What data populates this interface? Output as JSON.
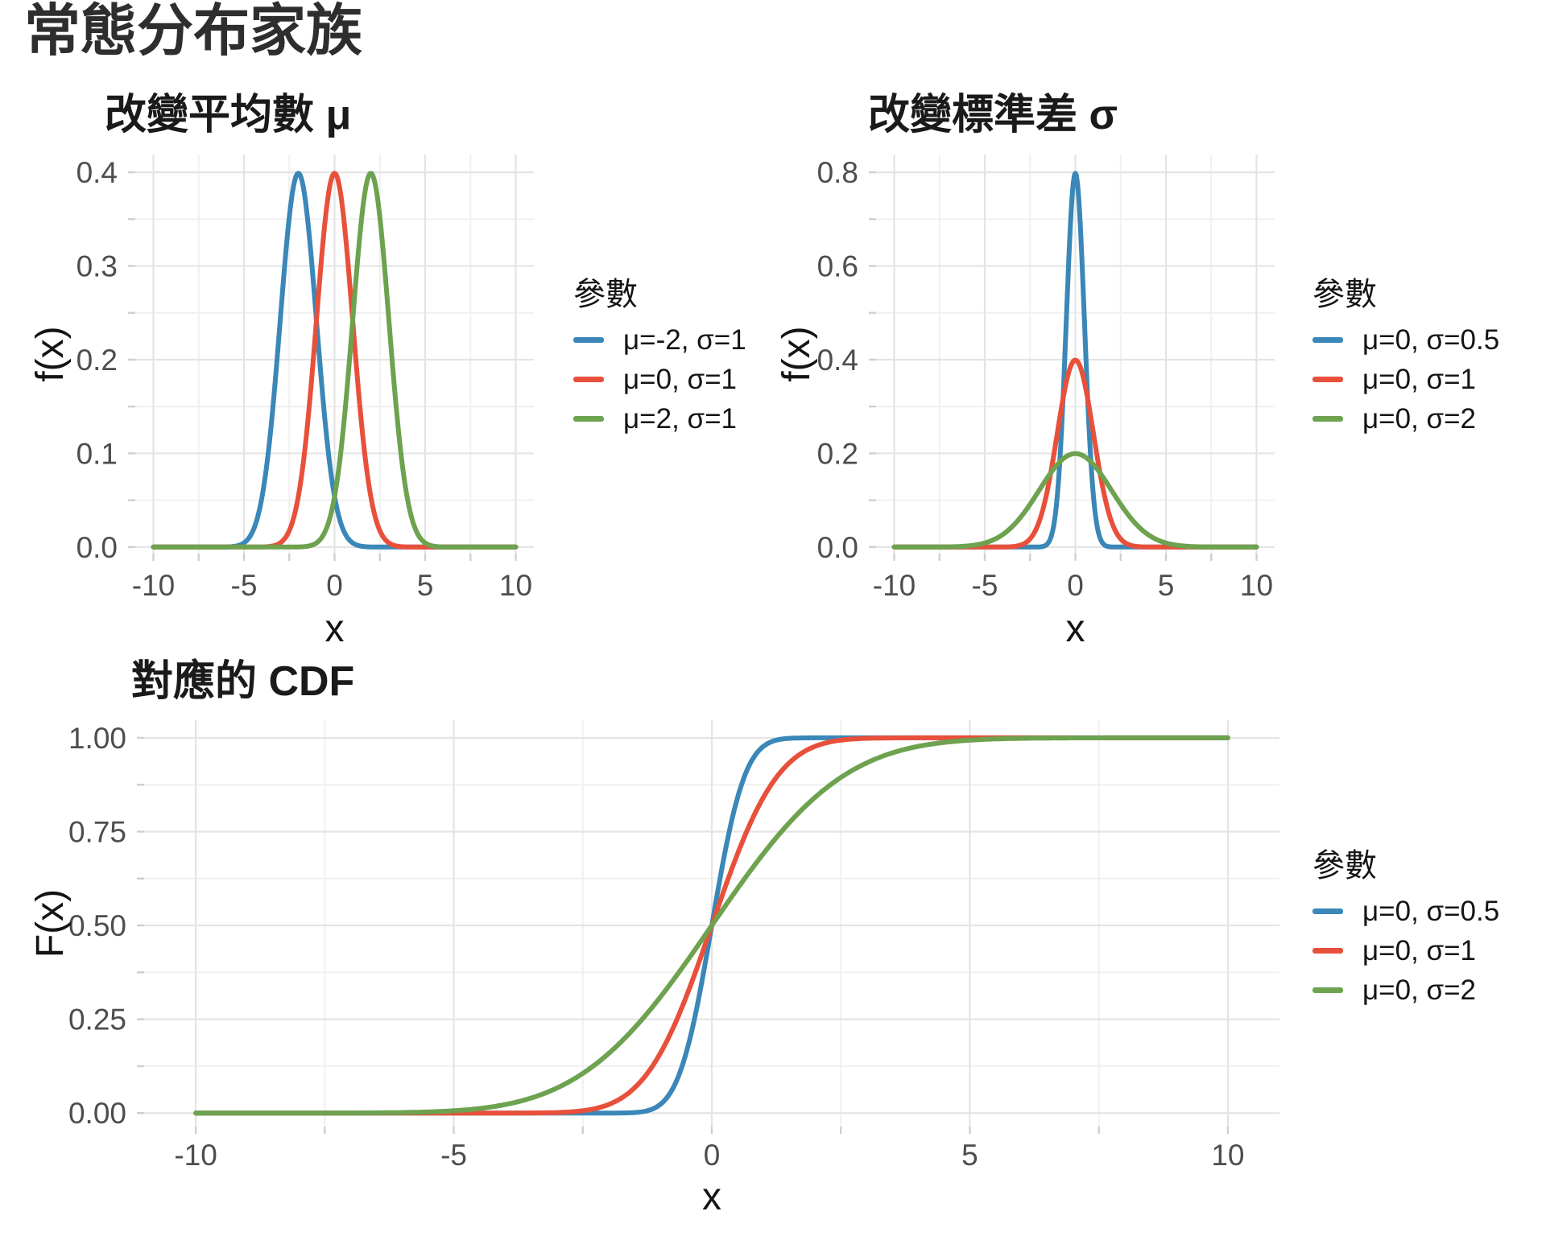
{
  "page": {
    "title": "常態分布家族"
  },
  "chart_data": [
    {
      "type": "line",
      "curve": "normal_pdf",
      "title": "改變平均數 μ",
      "xlabel": "x",
      "ylabel": "f(x)",
      "grid": true,
      "legend_position": "right",
      "legend_title": "參數",
      "x_range": [
        -10,
        10
      ],
      "x_ticks": [
        -10,
        -5,
        0,
        5,
        10
      ],
      "x_tick_labels": [
        "-10",
        "-5",
        "0",
        "5",
        "10"
      ],
      "y_ticks": [
        0,
        0.1,
        0.2,
        0.3,
        0.4
      ],
      "y_tick_labels": [
        "0.0",
        "0.1",
        "0.2",
        "0.3",
        "0.4"
      ],
      "ylim": [
        0,
        0.4
      ],
      "series": [
        {
          "name": "μ=-2, σ=1",
          "mu": -2,
          "sigma": 1,
          "color": "#3A87B8",
          "peak_x": -2,
          "peak_y": 0.399
        },
        {
          "name": "μ=0, σ=1",
          "mu": 0,
          "sigma": 1,
          "color": "#E8503B",
          "peak_x": 0,
          "peak_y": 0.399
        },
        {
          "name": "μ=2, σ=1",
          "mu": 2,
          "sigma": 1,
          "color": "#6DA24F",
          "peak_x": 2,
          "peak_y": 0.399
        }
      ]
    },
    {
      "type": "line",
      "curve": "normal_pdf",
      "title": "改變標準差 σ",
      "xlabel": "x",
      "ylabel": "f(x)",
      "grid": true,
      "legend_position": "right",
      "legend_title": "參數",
      "x_range": [
        -10,
        10
      ],
      "x_ticks": [
        -10,
        -5,
        0,
        5,
        10
      ],
      "x_tick_labels": [
        "-10",
        "-5",
        "0",
        "5",
        "10"
      ],
      "y_ticks": [
        0,
        0.2,
        0.4,
        0.6,
        0.8
      ],
      "y_tick_labels": [
        "0.0",
        "0.2",
        "0.4",
        "0.6",
        "0.8"
      ],
      "ylim": [
        0,
        0.8
      ],
      "series": [
        {
          "name": "μ=0, σ=0.5",
          "mu": 0,
          "sigma": 0.5,
          "color": "#3A87B8",
          "peak_x": 0,
          "peak_y": 0.798
        },
        {
          "name": "μ=0, σ=1",
          "mu": 0,
          "sigma": 1,
          "color": "#E8503B",
          "peak_x": 0,
          "peak_y": 0.399
        },
        {
          "name": "μ=0, σ=2",
          "mu": 0,
          "sigma": 2,
          "color": "#6DA24F",
          "peak_x": 0,
          "peak_y": 0.199
        }
      ]
    },
    {
      "type": "line",
      "curve": "normal_cdf",
      "title": "對應的 CDF",
      "xlabel": "x",
      "ylabel": "F(x)",
      "grid": true,
      "legend_position": "right",
      "legend_title": "參數",
      "x_range": [
        -10,
        10
      ],
      "x_ticks": [
        -10,
        -5,
        0,
        5,
        10
      ],
      "x_tick_labels": [
        "-10",
        "-5",
        "0",
        "5",
        "10"
      ],
      "y_ticks": [
        0,
        0.25,
        0.5,
        0.75,
        1
      ],
      "y_tick_labels": [
        "0.00",
        "0.25",
        "0.50",
        "0.75",
        "1.00"
      ],
      "ylim": [
        0,
        1
      ],
      "series": [
        {
          "name": "μ=0, σ=0.5",
          "mu": 0,
          "sigma": 0.5,
          "color": "#3A87B8",
          "value_at_0": 0.5
        },
        {
          "name": "μ=0, σ=1",
          "mu": 0,
          "sigma": 1,
          "color": "#E8503B",
          "value_at_0": 0.5
        },
        {
          "name": "μ=0, σ=2",
          "mu": 0,
          "sigma": 2,
          "color": "#6DA24F",
          "value_at_0": 0.5
        }
      ]
    }
  ]
}
